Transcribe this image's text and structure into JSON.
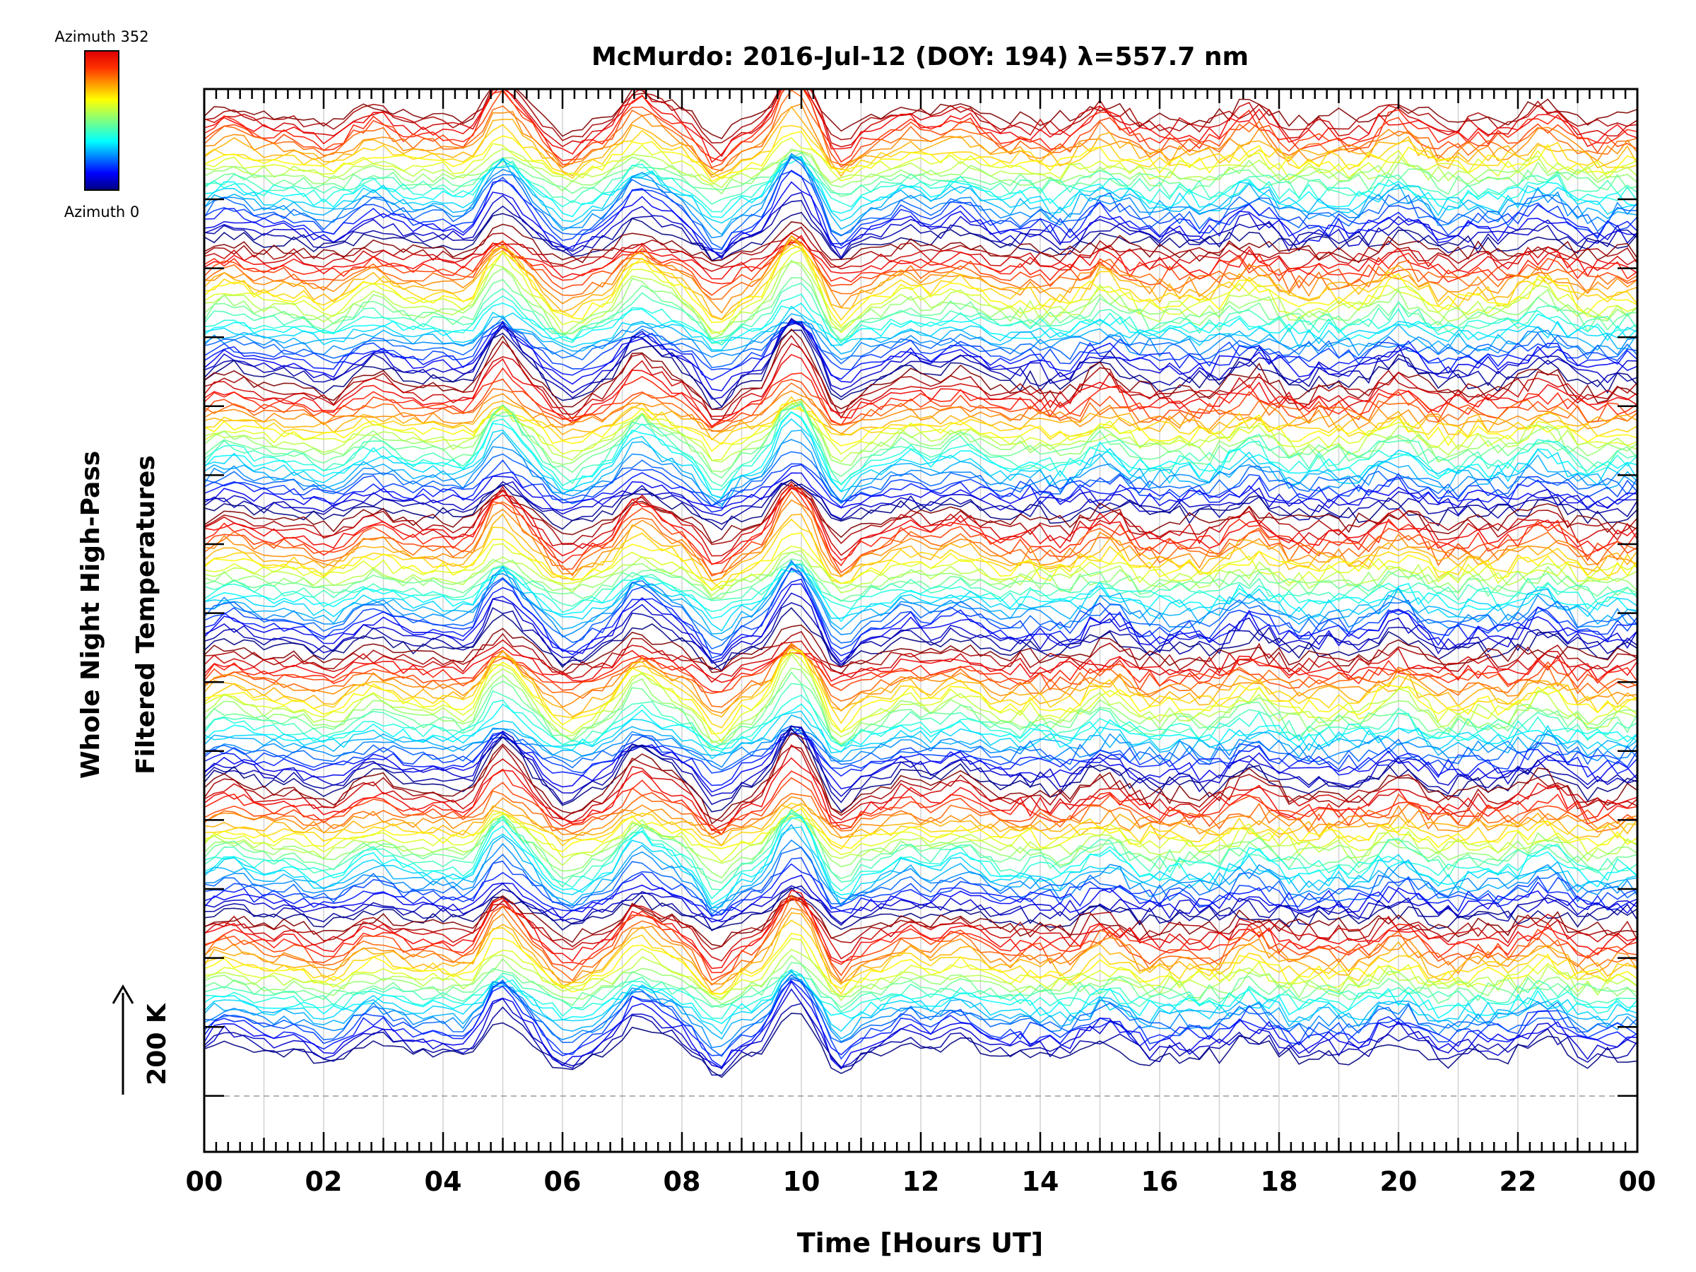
{
  "chart_data": {
    "type": "line",
    "title": "McMurdo: 2016-Jul-12 (DOY: 194) λ=557.7 nm",
    "xlabel": "Time [Hours UT]",
    "ylabel_line1": "Whole Night High-Pass",
    "ylabel_line2": "Filtered Temperatures",
    "xlim": [
      0,
      24
    ],
    "x_tick_labels": [
      "00",
      "02",
      "04",
      "06",
      "08",
      "10",
      "12",
      "14",
      "16",
      "18",
      "20",
      "22",
      "00"
    ],
    "scale_bar_label": "200 K",
    "colorbar": {
      "top_label": "Azimuth 352",
      "bottom_label": "Azimuth 0",
      "colors": [
        "#00007f",
        "#0000ff",
        "#007fff",
        "#00ffff",
        "#7fff7f",
        "#ffff00",
        "#ff7f00",
        "#ff0000",
        "#7f0000"
      ]
    },
    "grid": true,
    "series_count": 196,
    "azimuth_range": [
      0,
      352
    ],
    "colormap": "jet"
  }
}
